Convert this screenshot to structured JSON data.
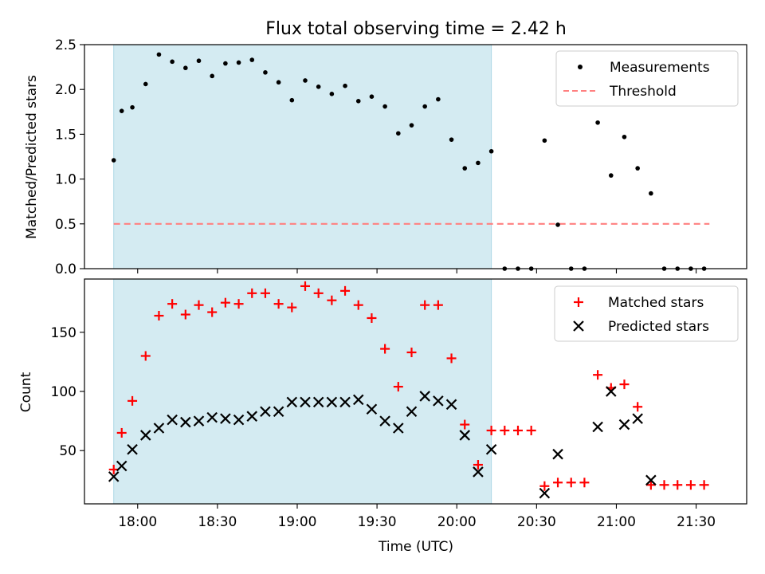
{
  "figure": {
    "title": "Flux total observing time = 2.42 h",
    "xlabel": "Time (UTC)",
    "x_ticks": [
      "18:00",
      "18:30",
      "19:00",
      "19:30",
      "20:00",
      "20:30",
      "21:00",
      "21:30"
    ]
  },
  "colors": {
    "shade": "#add8e6",
    "matched": "#ff0000",
    "predicted": "#000000",
    "threshold": "#ff8080",
    "measurement": "#000000"
  },
  "chart_data": [
    {
      "type": "scatter",
      "ylabel": "Matched/Predicted stars",
      "xlim": [
        "17:40",
        "21:49"
      ],
      "ylim": [
        0,
        2.5
      ],
      "yticks": [
        "0.0",
        "0.5",
        "1.0",
        "1.5",
        "2.0",
        "2.5"
      ],
      "shaded_interval": [
        "17:51",
        "20:13"
      ],
      "legend_position": "top-right",
      "threshold": {
        "name": "Threshold",
        "value": 0.5,
        "x_range": [
          "17:51",
          "21:35"
        ],
        "style": "dashed"
      },
      "series": [
        {
          "name": "Measurements",
          "marker": "dot",
          "points": [
            [
              "17:51",
              1.21
            ],
            [
              "17:54",
              1.76
            ],
            [
              "17:58",
              1.8
            ],
            [
              "18:03",
              2.06
            ],
            [
              "18:08",
              2.39
            ],
            [
              "18:13",
              2.31
            ],
            [
              "18:18",
              2.24
            ],
            [
              "18:23",
              2.32
            ],
            [
              "18:28",
              2.15
            ],
            [
              "18:33",
              2.29
            ],
            [
              "18:38",
              2.3
            ],
            [
              "18:43",
              2.33
            ],
            [
              "18:48",
              2.19
            ],
            [
              "18:53",
              2.08
            ],
            [
              "18:58",
              1.88
            ],
            [
              "19:03",
              2.1
            ],
            [
              "19:08",
              2.03
            ],
            [
              "19:13",
              1.95
            ],
            [
              "19:18",
              2.04
            ],
            [
              "19:23",
              1.87
            ],
            [
              "19:28",
              1.92
            ],
            [
              "19:33",
              1.81
            ],
            [
              "19:38",
              1.51
            ],
            [
              "19:43",
              1.6
            ],
            [
              "19:48",
              1.81
            ],
            [
              "19:53",
              1.89
            ],
            [
              "19:58",
              1.44
            ],
            [
              "20:03",
              1.12
            ],
            [
              "20:08",
              1.18
            ],
            [
              "20:13",
              1.31
            ],
            [
              "20:18",
              0.0
            ],
            [
              "20:23",
              0.0
            ],
            [
              "20:28",
              0.0
            ],
            [
              "20:33",
              1.43
            ],
            [
              "20:38",
              0.49
            ],
            [
              "20:43",
              0.0
            ],
            [
              "20:48",
              0.0
            ],
            [
              "20:53",
              1.63
            ],
            [
              "20:58",
              1.04
            ],
            [
              "21:03",
              1.47
            ],
            [
              "21:08",
              1.12
            ],
            [
              "21:13",
              0.84
            ],
            [
              "21:18",
              0.0
            ],
            [
              "21:23",
              0.0
            ],
            [
              "21:28",
              0.0
            ],
            [
              "21:33",
              0.0
            ]
          ]
        }
      ]
    },
    {
      "type": "scatter",
      "ylabel": "Count",
      "xlim": [
        "17:40",
        "21:49"
      ],
      "ylim": [
        5,
        195
      ],
      "yticks": [
        "50",
        "100",
        "150"
      ],
      "shaded_interval": [
        "17:51",
        "20:13"
      ],
      "legend_position": "top-right",
      "series": [
        {
          "name": "Matched stars",
          "marker": "plus",
          "points": [
            [
              "17:51",
              34
            ],
            [
              "17:54",
              65
            ],
            [
              "17:58",
              92
            ],
            [
              "18:03",
              130
            ],
            [
              "18:08",
              164
            ],
            [
              "18:13",
              174
            ],
            [
              "18:18",
              165
            ],
            [
              "18:23",
              173
            ],
            [
              "18:28",
              167
            ],
            [
              "18:33",
              175
            ],
            [
              "18:38",
              174
            ],
            [
              "18:43",
              183
            ],
            [
              "18:48",
              183
            ],
            [
              "18:53",
              174
            ],
            [
              "18:58",
              171
            ],
            [
              "19:03",
              189
            ],
            [
              "19:08",
              183
            ],
            [
              "19:13",
              177
            ],
            [
              "19:18",
              185
            ],
            [
              "19:23",
              173
            ],
            [
              "19:28",
              162
            ],
            [
              "19:33",
              136
            ],
            [
              "19:38",
              104
            ],
            [
              "19:43",
              133
            ],
            [
              "19:48",
              173
            ],
            [
              "19:53",
              173
            ],
            [
              "19:58",
              128
            ],
            [
              "20:03",
              72
            ],
            [
              "20:08",
              38
            ],
            [
              "20:13",
              67
            ],
            [
              "20:18",
              67
            ],
            [
              "20:23",
              67
            ],
            [
              "20:28",
              67
            ],
            [
              "20:33",
              20
            ],
            [
              "20:38",
              23
            ],
            [
              "20:43",
              23
            ],
            [
              "20:48",
              23
            ],
            [
              "20:53",
              114
            ],
            [
              "20:58",
              103
            ],
            [
              "21:03",
              106
            ],
            [
              "21:08",
              87
            ],
            [
              "21:13",
              21
            ],
            [
              "21:18",
              21
            ],
            [
              "21:23",
              21
            ],
            [
              "21:28",
              21
            ],
            [
              "21:33",
              21
            ]
          ]
        },
        {
          "name": "Predicted stars",
          "marker": "x",
          "points": [
            [
              "17:51",
              28
            ],
            [
              "17:54",
              37
            ],
            [
              "17:58",
              51
            ],
            [
              "18:03",
              63
            ],
            [
              "18:08",
              69
            ],
            [
              "18:13",
              76
            ],
            [
              "18:18",
              74
            ],
            [
              "18:23",
              75
            ],
            [
              "18:28",
              78
            ],
            [
              "18:33",
              77
            ],
            [
              "18:38",
              76
            ],
            [
              "18:43",
              79
            ],
            [
              "18:48",
              83
            ],
            [
              "18:53",
              83
            ],
            [
              "18:58",
              91
            ],
            [
              "19:03",
              91
            ],
            [
              "19:08",
              91
            ],
            [
              "19:13",
              91
            ],
            [
              "19:18",
              91
            ],
            [
              "19:23",
              93
            ],
            [
              "19:28",
              85
            ],
            [
              "19:33",
              75
            ],
            [
              "19:38",
              69
            ],
            [
              "19:43",
              83
            ],
            [
              "19:48",
              96
            ],
            [
              "19:53",
              92
            ],
            [
              "19:58",
              89
            ],
            [
              "20:03",
              63
            ],
            [
              "20:08",
              32
            ],
            [
              "20:13",
              51
            ],
            [
              "20:33",
              14
            ],
            [
              "20:38",
              47
            ],
            [
              "20:53",
              70
            ],
            [
              "20:58",
              100
            ],
            [
              "21:03",
              72
            ],
            [
              "21:08",
              77
            ],
            [
              "21:13",
              25
            ]
          ]
        }
      ]
    }
  ]
}
